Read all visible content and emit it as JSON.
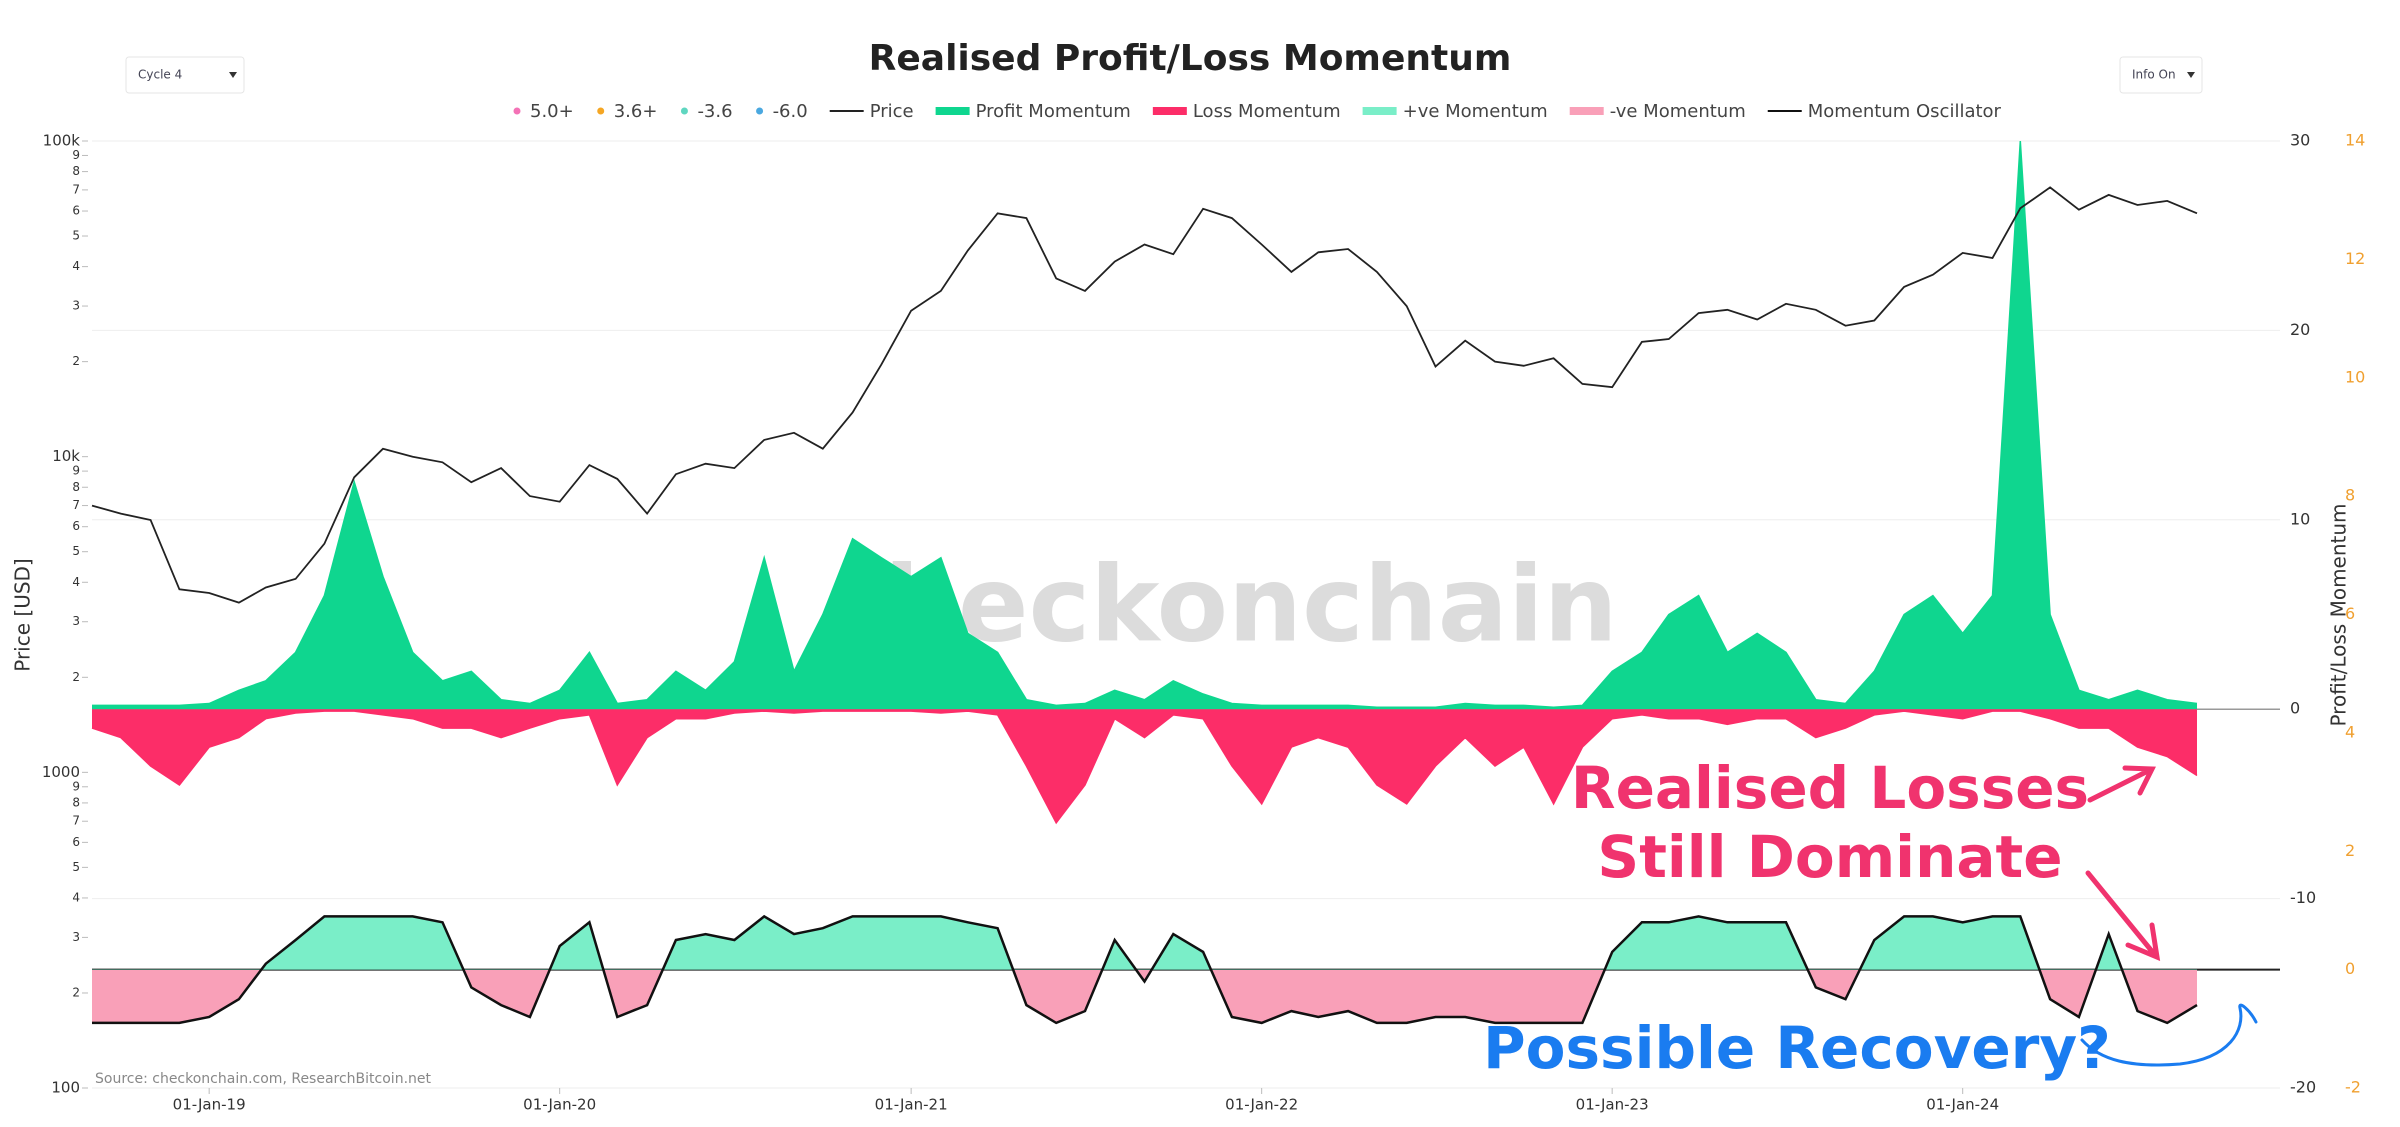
{
  "controls": {
    "cycle": "Cycle 4",
    "info": "Info On"
  },
  "chart_data": {
    "type": "line",
    "title": "Realised Profit/Loss Momentum",
    "watermark": "checkonchain",
    "source": "Source: checkonchain.com, ResearchBitcoin.net",
    "ylabel": "Price [USD]",
    "y2label": "Profit/Loss Momentum",
    "annotations": [
      {
        "text": "Realised Losses",
        "color": "#f0336e"
      },
      {
        "text": "Still Dominate",
        "color": "#f0336e"
      },
      {
        "text": "Possible Recovery?",
        "color": "#1a7cf0"
      }
    ],
    "legend_markers": [
      {
        "name": "5.0+",
        "color": "#f472b6"
      },
      {
        "name": "3.6+",
        "color": "#f5a623"
      },
      {
        "name": "-3.6",
        "color": "#5fd6c0"
      },
      {
        "name": "-6.0",
        "color": "#4aa8e0"
      }
    ],
    "x": [
      "2018-09-01",
      "2018-10-01",
      "2018-11-01",
      "2018-12-01",
      "2019-01-01",
      "2019-02-01",
      "2019-03-01",
      "2019-04-01",
      "2019-05-01",
      "2019-06-01",
      "2019-07-01",
      "2019-08-01",
      "2019-09-01",
      "2019-10-01",
      "2019-11-01",
      "2019-12-01",
      "2020-01-01",
      "2020-02-01",
      "2020-03-01",
      "2020-04-01",
      "2020-05-01",
      "2020-06-01",
      "2020-07-01",
      "2020-08-01",
      "2020-09-01",
      "2020-10-01",
      "2020-11-01",
      "2020-12-01",
      "2021-01-01",
      "2021-02-01",
      "2021-03-01",
      "2021-04-01",
      "2021-05-01",
      "2021-06-01",
      "2021-07-01",
      "2021-08-01",
      "2021-09-01",
      "2021-10-01",
      "2021-11-01",
      "2021-12-01",
      "2022-01-01",
      "2022-02-01",
      "2022-03-01",
      "2022-04-01",
      "2022-05-01",
      "2022-06-01",
      "2022-07-01",
      "2022-08-01",
      "2022-09-01",
      "2022-10-01",
      "2022-11-01",
      "2022-12-01",
      "2023-01-01",
      "2023-02-01",
      "2023-03-01",
      "2023-04-01",
      "2023-05-01",
      "2023-06-01",
      "2023-07-01",
      "2023-08-01",
      "2023-09-01",
      "2023-10-01",
      "2023-11-01",
      "2023-12-01",
      "2024-01-01",
      "2024-02-01",
      "2024-03-01",
      "2024-04-01",
      "2024-05-01",
      "2024-06-01",
      "2024-07-01",
      "2024-08-01",
      "2024-09-01"
    ],
    "xlim": [
      "2018-09-01",
      "2024-09-01"
    ],
    "xticks": [
      {
        "value": "2019-01-01",
        "label": "01-Jan-19"
      },
      {
        "value": "2020-01-01",
        "label": "01-Jan-20"
      },
      {
        "value": "2021-01-01",
        "label": "01-Jan-21"
      },
      {
        "value": "2022-01-01",
        "label": "01-Jan-22"
      },
      {
        "value": "2023-01-01",
        "label": "01-Jan-23"
      },
      {
        "value": "2024-01-01",
        "label": "01-Jan-24"
      }
    ],
    "ylog": true,
    "ylim": [
      100,
      100000
    ],
    "yticks": [
      100,
      {
        "value": 200,
        "label": "2"
      },
      {
        "value": 300,
        "label": "3"
      },
      {
        "value": 400,
        "label": "4"
      },
      {
        "value": 500,
        "label": "5"
      },
      {
        "value": 600,
        "label": "6"
      },
      {
        "value": 700,
        "label": "7"
      },
      {
        "value": 800,
        "label": "8"
      },
      {
        "value": 900,
        "label": "9"
      },
      1000,
      {
        "value": 2000,
        "label": "2"
      },
      {
        "value": 3000,
        "label": "3"
      },
      {
        "value": 4000,
        "label": "4"
      },
      {
        "value": 5000,
        "label": "5"
      },
      {
        "value": 6000,
        "label": "6"
      },
      {
        "value": 7000,
        "label": "7"
      },
      {
        "value": 8000,
        "label": "8"
      },
      {
        "value": 9000,
        "label": "9"
      },
      {
        "value": 10000,
        "label": "10k"
      },
      {
        "value": 20000,
        "label": "2"
      },
      {
        "value": 30000,
        "label": "3"
      },
      {
        "value": 40000,
        "label": "4"
      },
      {
        "value": 50000,
        "label": "5"
      },
      {
        "value": 60000,
        "label": "6"
      },
      {
        "value": 70000,
        "label": "7"
      },
      {
        "value": 80000,
        "label": "8"
      },
      {
        "value": 90000,
        "label": "9"
      },
      {
        "value": 100000,
        "label": "100k"
      }
    ],
    "y2lim": [
      -20,
      30
    ],
    "y2ticks": [
      -20,
      -10,
      0,
      10,
      20,
      30
    ],
    "y3lim": [
      -2,
      14
    ],
    "y3ticks": [
      -2,
      0,
      2,
      4,
      6,
      8,
      10,
      12,
      14
    ],
    "y3color": "#f0a030",
    "grid": true,
    "series": [
      {
        "name": "Price",
        "color": "#222222",
        "axis": "y",
        "kind": "line",
        "values": [
          7000,
          6600,
          6300,
          3800,
          3700,
          3450,
          3850,
          4100,
          5300,
          8600,
          10600,
          10000,
          9600,
          8300,
          9200,
          7500,
          7200,
          9400,
          8500,
          6600,
          8800,
          9500,
          9200,
          11300,
          11900,
          10600,
          13800,
          19600,
          29000,
          33500,
          45000,
          59000,
          57000,
          36700,
          33500,
          41500,
          47000,
          43800,
          61000,
          57000,
          47000,
          38500,
          44400,
          45500,
          38500,
          30000,
          19300,
          23300,
          20000,
          19400,
          20500,
          17000,
          16600,
          23100,
          23600,
          28500,
          29200,
          27200,
          30500,
          29200,
          26000,
          27000,
          34500,
          37700,
          44200,
          42600,
          61200,
          71300,
          60600,
          67500,
          62700,
          64600,
          59000
        ]
      },
      {
        "name": "Profit Momentum",
        "color": "#0fd68f",
        "axis": "y2",
        "kind": "area",
        "values": [
          0.2,
          0.2,
          0.2,
          0.2,
          0.3,
          1,
          1.5,
          3,
          6,
          12,
          7,
          3,
          1.5,
          2,
          0.5,
          0.3,
          1,
          3,
          0.3,
          0.5,
          2,
          1,
          2.5,
          8,
          2,
          5,
          9,
          8,
          7,
          8,
          4,
          3,
          0.5,
          0.2,
          0.3,
          1,
          0.5,
          1.5,
          0.8,
          0.3,
          0.2,
          0.2,
          0.2,
          0.2,
          0.1,
          0.1,
          0.1,
          0.3,
          0.2,
          0.2,
          0.1,
          0.2,
          2,
          3,
          5,
          6,
          3,
          4,
          3,
          0.5,
          0.3,
          2,
          5,
          6,
          4,
          6,
          30,
          5,
          1,
          0.5,
          1,
          0.5,
          0.3
        ]
      },
      {
        "name": "Loss Momentum",
        "color": "#fc2d68",
        "axis": "y2",
        "kind": "area",
        "values": [
          -1,
          -1.5,
          -3,
          -4,
          -2,
          -1.5,
          -0.5,
          -0.2,
          -0.1,
          -0.1,
          -0.3,
          -0.5,
          -1,
          -1,
          -1.5,
          -1,
          -0.5,
          -0.3,
          -4,
          -1.5,
          -0.5,
          -0.5,
          -0.2,
          -0.1,
          -0.2,
          -0.1,
          -0.1,
          -0.1,
          -0.1,
          -0.2,
          -0.1,
          -0.3,
          -3,
          -6,
          -4,
          -0.5,
          -1.5,
          -0.3,
          -0.5,
          -3,
          -5,
          -2,
          -1.5,
          -2,
          -4,
          -5,
          -3,
          -1.5,
          -3,
          -2,
          -5,
          -2,
          -0.5,
          -0.3,
          -0.5,
          -0.5,
          -0.8,
          -0.5,
          -0.5,
          -1.5,
          -1,
          -0.3,
          -0.1,
          -0.3,
          -0.5,
          -0.1,
          -0.1,
          -0.5,
          -1,
          -1,
          -2,
          -2.5,
          -3.5
        ]
      },
      {
        "name": "Momentum Oscillator",
        "color": "#111111",
        "axis": "y3",
        "kind": "oscillator",
        "positive_name": "+ve Momentum",
        "positive_color": "#7aeec8",
        "negative_name": "-ve Momentum",
        "negative_color": "#f9a0b8",
        "values": [
          -0.9,
          -0.9,
          -0.9,
          -0.9,
          -0.8,
          -0.5,
          0.1,
          0.5,
          0.9,
          0.9,
          0.9,
          0.9,
          0.8,
          -0.3,
          -0.6,
          -0.8,
          0.4,
          0.8,
          -0.8,
          -0.6,
          0.5,
          0.6,
          0.5,
          0.9,
          0.6,
          0.7,
          0.9,
          0.9,
          0.9,
          0.9,
          0.8,
          0.7,
          -0.6,
          -0.9,
          -0.7,
          0.5,
          -0.2,
          0.6,
          0.3,
          -0.8,
          -0.9,
          -0.7,
          -0.8,
          -0.7,
          -0.9,
          -0.9,
          -0.8,
          -0.8,
          -0.9,
          -0.9,
          -0.9,
          -0.9,
          0.3,
          0.8,
          0.8,
          0.9,
          0.8,
          0.8,
          0.8,
          -0.3,
          -0.5,
          0.5,
          0.9,
          0.9,
          0.8,
          0.9,
          0.9,
          -0.5,
          -0.8,
          0.6,
          -0.7,
          -0.9,
          -0.6
        ]
      }
    ]
  }
}
